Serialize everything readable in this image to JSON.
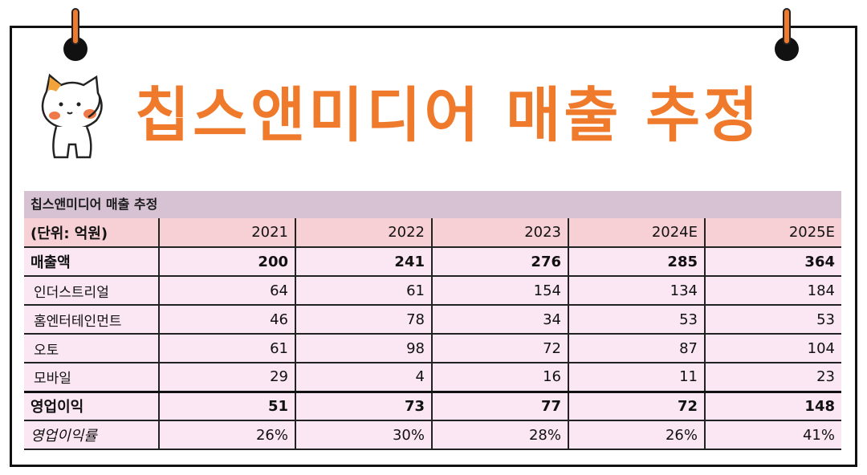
{
  "title": "칩스앤미디어 매출 추정",
  "table": {
    "caption": "칩스앤미디어 매출 추정",
    "unit_label": "(단위: 억원)",
    "years": [
      "2021",
      "2022",
      "2023",
      "2024E",
      "2025E"
    ],
    "rows": [
      {
        "label": "매출액",
        "values": [
          "200",
          "241",
          "276",
          "285",
          "364"
        ]
      },
      {
        "label": "인더스트리얼",
        "values": [
          "64",
          "61",
          "154",
          "134",
          "184"
        ]
      },
      {
        "label": "홈엔터테인먼트",
        "values": [
          "46",
          "78",
          "34",
          "53",
          "53"
        ]
      },
      {
        "label": "오토",
        "values": [
          "61",
          "98",
          "72",
          "87",
          "104"
        ]
      },
      {
        "label": "모바일",
        "values": [
          "29",
          "4",
          "16",
          "11",
          "23"
        ]
      },
      {
        "label": "영업이익",
        "values": [
          "51",
          "73",
          "77",
          "72",
          "148"
        ]
      },
      {
        "label": "영업이익률",
        "values": [
          "26%",
          "30%",
          "28%",
          "26%",
          "41%"
        ]
      }
    ]
  },
  "colors": {
    "title": "#f07a2c",
    "caption_bg": "#d7c2d4",
    "header_bg": "#f7d0d6",
    "row_bg": "#fbe6f3"
  },
  "icons": [
    "cat-mascot-icon",
    "binder-ring-icon"
  ]
}
